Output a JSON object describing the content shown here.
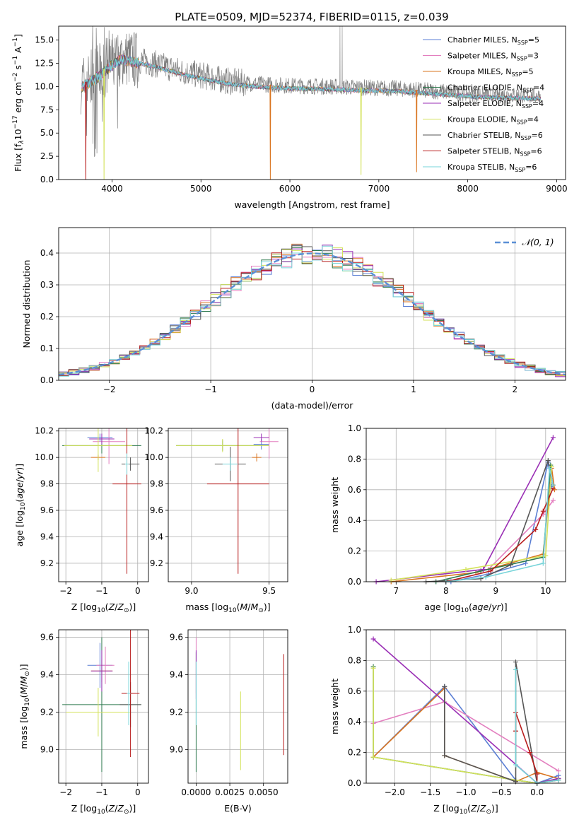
{
  "figure": {
    "title": "PLATE=0509, MJD=52374, FIBERID=0115, z=0.039"
  },
  "colors": {
    "Chabrier MILES": "#5b7fd4",
    "Salpeter MILES": "#e37fbf",
    "Kroupa MILES": "#d9741f",
    "Chabrier ELODIE": "#2f7a4f",
    "Salpeter ELODIE": "#9a2fb5",
    "Kroupa ELODIE": "#d3e25a",
    "Chabrier STELIB": "#555555",
    "Salpeter STELIB": "#b81c1c",
    "Kroupa STELIB": "#77d4d9",
    "data": "#808080",
    "normal": "#5b8fd6"
  },
  "chart_data": [
    {
      "id": "spectrum",
      "type": "line",
      "xlabel": "wavelength [Angstrom, rest frame]",
      "ylabel": "Flux [f_λ 10^-17 erg cm^-2 s^-1 A^-1]",
      "xlim": [
        3400,
        9100
      ],
      "ylim": [
        0,
        16.5
      ],
      "xticks": [
        4000,
        5000,
        6000,
        7000,
        8000,
        9000
      ],
      "yticks": [
        0.0,
        2.5,
        5.0,
        7.5,
        10.0,
        12.5,
        15.0
      ],
      "continuum_x": [
        3650,
        3800,
        3900,
        4000,
        4100,
        4300,
        4500,
        4800,
        5000,
        5300,
        5600,
        6000,
        6500,
        6800,
        7200,
        7500,
        7800,
        8100,
        8400,
        8800
      ],
      "continuum_y": [
        10.2,
        11.0,
        11.8,
        12.6,
        13.2,
        12.8,
        12.4,
        11.6,
        11.2,
        10.6,
        10.3,
        10.1,
        10.0,
        9.9,
        9.8,
        9.6,
        9.4,
        9.2,
        9.1,
        9.0
      ],
      "dips": [
        [
          3705,
          0
        ],
        [
          3910,
          0
        ],
        [
          5780,
          0
        ],
        [
          6800,
          0.5
        ],
        [
          7425,
          0.8
        ]
      ],
      "legend": [
        {
          "label": "Chabrier MILES",
          "nssp": "5"
        },
        {
          "label": "Salpeter MILES",
          "nssp": "3"
        },
        {
          "label": "Kroupa MILES",
          "nssp": "5"
        },
        {
          "label": "Chabrier ELODIE",
          "nssp": "4"
        },
        {
          "label": "Salpeter ELODIE",
          "nssp": "4"
        },
        {
          "label": "Kroupa ELODIE",
          "nssp": "4"
        },
        {
          "label": "Chabrier STELIB",
          "nssp": "6"
        },
        {
          "label": "Salpeter STELIB",
          "nssp": "6"
        },
        {
          "label": "Kroupa STELIB",
          "nssp": "6"
        }
      ]
    },
    {
      "id": "residuals",
      "type": "line",
      "xlabel": "(data-model)/error",
      "ylabel": "Normed distribution",
      "xlim": [
        -2.5,
        2.5
      ],
      "ylim": [
        0,
        0.48
      ],
      "xticks": [
        -2,
        -1,
        0,
        1,
        2
      ],
      "yticks": [
        0.0,
        0.1,
        0.2,
        0.3,
        0.4
      ],
      "grid": true,
      "legend": "upper right",
      "gaussian_label": "𝒩(0, 1)",
      "bin_width": 0.1
    },
    {
      "id": "age-vs-Z",
      "type": "scatter",
      "xlabel": "Z [log10(Z/Z⊙)]",
      "ylabel": "age  [log10(age/yr)]",
      "xlim": [
        -2.2,
        0.3
      ],
      "ylim": [
        9.06,
        10.22
      ],
      "xticks": [
        -2,
        -1,
        0
      ],
      "yticks": [
        9.2,
        9.4,
        9.6,
        9.8,
        10.0,
        10.2
      ],
      "grid": true,
      "points": [
        {
          "model": "Chabrier MILES",
          "x": -1.05,
          "y": 10.15,
          "xerr": 0.35,
          "yerr": 0.03
        },
        {
          "model": "Salpeter MILES",
          "x": -0.8,
          "y": 10.12,
          "xerr": 0.45,
          "yerr": 0.17
        },
        {
          "model": "Kroupa MILES",
          "x": -1.1,
          "y": 10.0,
          "xerr": 0.2,
          "yerr": 0.02
        },
        {
          "model": "Chabrier ELODIE",
          "x": -1.0,
          "y": 10.09,
          "xerr": 1.1,
          "yerr": 0.06
        },
        {
          "model": "Salpeter ELODIE",
          "x": -1.0,
          "y": 10.14,
          "xerr": 0.35,
          "yerr": 0.04
        },
        {
          "model": "Kroupa ELODIE",
          "x": -1.1,
          "y": 10.09,
          "xerr": 0.95,
          "yerr": 0.2
        },
        {
          "model": "Chabrier STELIB",
          "x": -0.2,
          "y": 9.95,
          "xerr": 0.25,
          "yerr": 0.05
        },
        {
          "model": "Salpeter STELIB",
          "x": -0.3,
          "y": 9.8,
          "xerr": 0.4,
          "yerr": 0.68
        },
        {
          "model": "Kroupa STELIB",
          "x": -0.3,
          "y": 9.95,
          "xerr": 0.05,
          "yerr": 0.08
        }
      ]
    },
    {
      "id": "age-vs-mass",
      "type": "scatter",
      "xlabel": "mass [log10(M/M⊙)]",
      "ylabel": "",
      "xlim": [
        8.85,
        9.62
      ],
      "ylim": [
        9.06,
        10.22
      ],
      "xticks": [
        9.0,
        9.5
      ],
      "yticks": [
        9.2,
        9.4,
        9.6,
        9.8,
        10.0,
        10.2
      ],
      "grid": true,
      "points": [
        {
          "model": "Chabrier MILES",
          "x": 9.45,
          "y": 10.1,
          "xerr": 0.05,
          "yerr": 0.04
        },
        {
          "model": "Salpeter MILES",
          "x": 9.5,
          "y": 10.12,
          "xerr": 0.06,
          "yerr": 0.13
        },
        {
          "model": "Kroupa MILES",
          "x": 9.42,
          "y": 10.0,
          "xerr": 0.03,
          "yerr": 0.03
        },
        {
          "model": "Chabrier ELODIE",
          "x": 9.2,
          "y": 10.09,
          "xerr": 0.3,
          "yerr": 0.04
        },
        {
          "model": "Salpeter ELODIE",
          "x": 9.45,
          "y": 10.15,
          "xerr": 0.05,
          "yerr": 0.03
        },
        {
          "model": "Kroupa ELODIE",
          "x": 9.2,
          "y": 10.09,
          "xerr": 0.3,
          "yerr": 0.05
        },
        {
          "model": "Chabrier STELIB",
          "x": 9.25,
          "y": 9.95,
          "xerr": 0.1,
          "yerr": 0.13
        },
        {
          "model": "Salpeter STELIB",
          "x": 9.3,
          "y": 9.8,
          "xerr": 0.2,
          "yerr": 0.68
        },
        {
          "model": "Kroupa STELIB",
          "x": 9.25,
          "y": 9.95,
          "xerr": 0.05,
          "yerr": 0.05
        }
      ]
    },
    {
      "id": "weights-vs-age",
      "type": "line",
      "xlabel": "age  [log10(age/yr)]",
      "ylabel": "mass weight",
      "xlim": [
        6.4,
        10.4
      ],
      "ylim": [
        0,
        1.0
      ],
      "xticks": [
        7,
        8,
        9,
        10
      ],
      "yticks": [
        0.0,
        0.2,
        0.4,
        0.6,
        0.8,
        1.0
      ],
      "grid": true,
      "series": [
        {
          "model": "Chabrier MILES",
          "x": [
            8.1,
            8.85,
            9.6,
            10.05,
            10.12
          ],
          "y": [
            0.0,
            0.05,
            0.12,
            0.78,
            0.62
          ]
        },
        {
          "model": "Salpeter MILES",
          "x": [
            8.85,
            9.95,
            10.15
          ],
          "y": [
            0.08,
            0.44,
            0.53
          ]
        },
        {
          "model": "Kroupa MILES",
          "x": [
            6.9,
            8.6,
            9.95,
            10.12,
            10.18
          ],
          "y": [
            0.0,
            0.06,
            0.18,
            0.74,
            0.6
          ]
        },
        {
          "model": "Chabrier ELODIE",
          "x": [
            7.8,
            8.7,
            9.95,
            10.1
          ],
          "y": [
            0.0,
            0.07,
            0.16,
            0.76
          ]
        },
        {
          "model": "Salpeter ELODIE",
          "x": [
            6.6,
            8.75,
            10.15
          ],
          "y": [
            0.0,
            0.08,
            0.94
          ]
        },
        {
          "model": "Kroupa ELODIE",
          "x": [
            6.9,
            8.4,
            10.0,
            10.12
          ],
          "y": [
            0.01,
            0.08,
            0.17,
            0.75
          ]
        },
        {
          "model": "Chabrier STELIB",
          "x": [
            7.6,
            8.7,
            9.3,
            10.05,
            10.15
          ],
          "y": [
            0.0,
            0.02,
            0.11,
            0.79,
            0.63
          ]
        },
        {
          "model": "Salpeter STELIB",
          "x": [
            8.0,
            8.9,
            9.8,
            9.95,
            10.15
          ],
          "y": [
            0.0,
            0.07,
            0.34,
            0.46,
            0.61
          ]
        },
        {
          "model": "Kroupa STELIB",
          "x": [
            8.0,
            8.8,
            9.95,
            10.08,
            10.15
          ],
          "y": [
            0.0,
            0.03,
            0.12,
            0.74,
            0.63
          ]
        }
      ]
    },
    {
      "id": "mass-vs-Z",
      "type": "scatter",
      "xlabel": "Z [log10(Z/Z⊙)]",
      "ylabel": "mass [log10(M/M⊙)]",
      "xlim": [
        -2.2,
        0.3
      ],
      "ylim": [
        8.82,
        9.64
      ],
      "xticks": [
        -2,
        -1,
        0
      ],
      "yticks": [
        9.0,
        9.2,
        9.4,
        9.6
      ],
      "grid": true,
      "points": [
        {
          "model": "Chabrier MILES",
          "x": -1.05,
          "y": 9.45,
          "xerr": 0.35,
          "yerr": 0.12
        },
        {
          "model": "Salpeter MILES",
          "x": -0.9,
          "y": 9.45,
          "xerr": 0.25,
          "yerr": 0.1
        },
        {
          "model": "Kroupa MILES",
          "x": -1.0,
          "y": 9.42,
          "xerr": 0.3,
          "yerr": 0.06
        },
        {
          "model": "Chabrier ELODIE",
          "x": -1.0,
          "y": 9.24,
          "xerr": 1.1,
          "yerr": 0.36
        },
        {
          "model": "Salpeter ELODIE",
          "x": -1.0,
          "y": 9.42,
          "xerr": 0.3,
          "yerr": 0.11
        },
        {
          "model": "Kroupa ELODIE",
          "x": -1.1,
          "y": 9.2,
          "xerr": 0.9,
          "yerr": 0.13
        },
        {
          "model": "Chabrier STELIB",
          "x": -0.2,
          "y": 9.24,
          "xerr": 0.3,
          "yerr": 0.12
        },
        {
          "model": "Salpeter STELIB",
          "x": -0.2,
          "y": 9.3,
          "xerr": 0.25,
          "yerr": 0.34
        },
        {
          "model": "Kroupa STELIB",
          "x": -0.25,
          "y": 9.3,
          "xerr": 0.05,
          "yerr": 0.17
        }
      ]
    },
    {
      "id": "mass-vs-ebv",
      "type": "scatter",
      "xlabel": "E(B-V)",
      "ylabel": "",
      "xlim": [
        -0.0006,
        0.0068
      ],
      "ylim": [
        8.82,
        9.64
      ],
      "xticks": [
        0.0,
        0.0025,
        0.005
      ],
      "xticklabels": [
        "0.0000",
        "0.0025",
        "0.0050"
      ],
      "yticks": [
        9.0,
        9.2,
        9.4,
        9.6
      ],
      "grid": true,
      "points": [
        {
          "model": "Salpeter MILES",
          "x": 0.0,
          "y": 9.45,
          "yerr": 0.15
        },
        {
          "model": "Chabrier ELODIE",
          "x": 0.0,
          "y": 9.2,
          "yerr": 0.32
        },
        {
          "model": "Salpeter ELODIE",
          "x": 0.0,
          "y": 9.4,
          "yerr": 0.13
        },
        {
          "model": "Kroupa ELODIE",
          "x": 0.0033,
          "y": 9.1,
          "yerr": 0.21
        },
        {
          "model": "Salpeter STELIB",
          "x": 0.0065,
          "y": 9.24,
          "yerr": 0.27
        },
        {
          "model": "Kroupa STELIB",
          "x": 0.0,
          "y": 9.3,
          "yerr": 0.17
        }
      ]
    },
    {
      "id": "weights-vs-Z",
      "type": "line",
      "xlabel": "Z [log10(Z/Z⊙)]",
      "ylabel": "mass weight",
      "xlim": [
        -2.4,
        0.4
      ],
      "ylim": [
        0,
        1.0
      ],
      "xticks": [
        -2.0,
        -1.5,
        -1.0,
        -0.5,
        0.0
      ],
      "yticks": [
        0.0,
        0.2,
        0.4,
        0.6,
        0.8,
        1.0
      ],
      "grid": true,
      "series": [
        {
          "model": "Chabrier MILES",
          "x": [
            -2.3,
            -1.3,
            -0.3,
            0.0,
            0.3
          ],
          "y": [
            0.17,
            0.63,
            0.02,
            0.0,
            0.05
          ]
        },
        {
          "model": "Salpeter MILES",
          "x": [
            -2.3,
            -1.3,
            0.3
          ],
          "y": [
            0.39,
            0.53,
            0.08
          ]
        },
        {
          "model": "Kroupa MILES",
          "x": [
            -2.3,
            -1.3,
            -1.3,
            -0.3,
            0.0,
            0.3
          ],
          "y": [
            0.17,
            0.62,
            0.18,
            0.01,
            0.07,
            0.03
          ]
        },
        {
          "model": "Chabrier ELODIE",
          "x": [
            -2.3,
            -2.3,
            -0.3,
            0.0,
            0.3
          ],
          "y": [
            0.76,
            0.17,
            0.02,
            0.0,
            0.03
          ]
        },
        {
          "model": "Salpeter ELODIE",
          "x": [
            -2.3,
            0.0,
            0.3
          ],
          "y": [
            0.94,
            0.0,
            0.03
          ]
        },
        {
          "model": "Kroupa ELODIE",
          "x": [
            -2.3,
            -2.3,
            -0.3,
            0.0,
            0.3
          ],
          "y": [
            0.75,
            0.17,
            0.02,
            0.0,
            0.02
          ]
        },
        {
          "model": "Chabrier STELIB",
          "x": [
            -1.3,
            -1.3,
            -0.3,
            -0.3,
            0.0,
            0.3
          ],
          "y": [
            0.63,
            0.18,
            0.01,
            0.79,
            0.0,
            0.02
          ]
        },
        {
          "model": "Salpeter STELIB",
          "x": [
            -0.3,
            -0.3,
            -0.1,
            0.0,
            0.0
          ],
          "y": [
            0.34,
            0.46,
            0.2,
            0.06,
            0.0
          ]
        },
        {
          "model": "Kroupa STELIB",
          "x": [
            -0.3,
            -0.3,
            0.0,
            0.3
          ],
          "y": [
            0.74,
            0.12,
            0.0,
            0.02
          ]
        }
      ]
    }
  ]
}
